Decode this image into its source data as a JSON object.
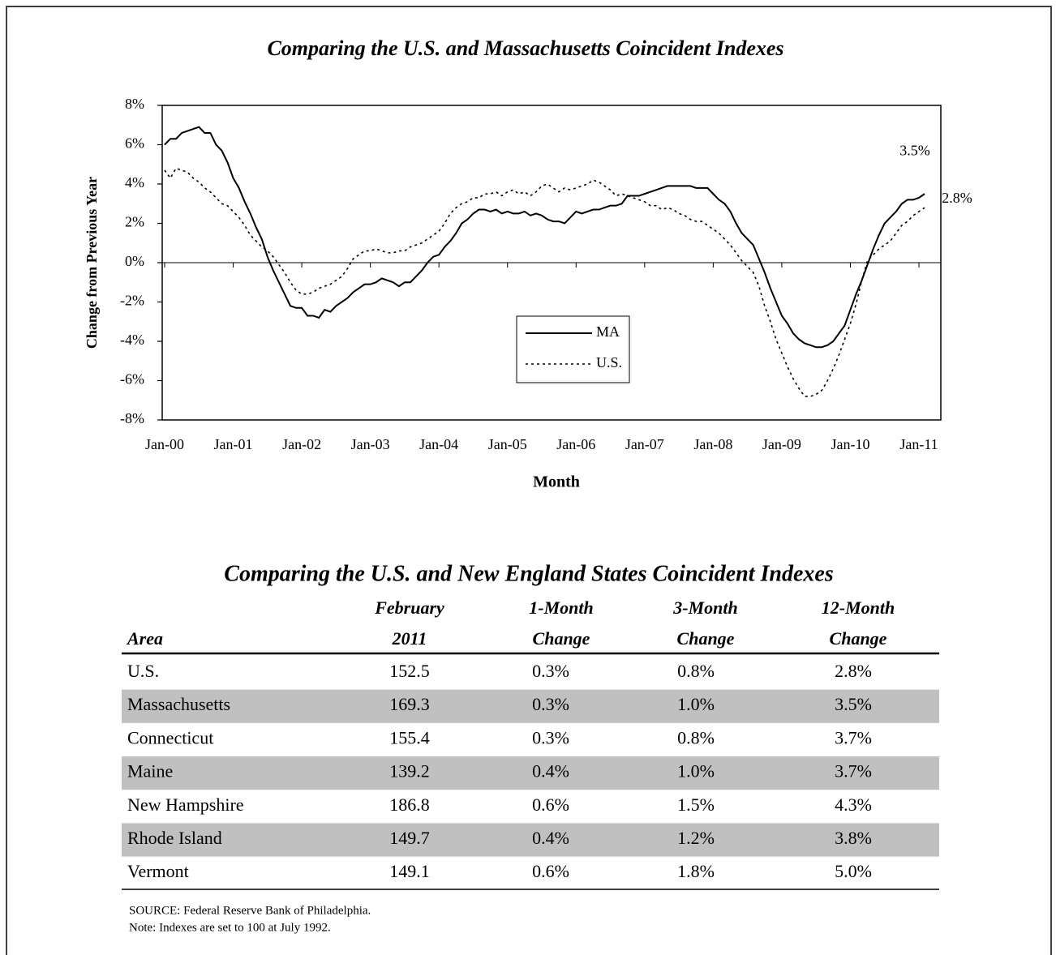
{
  "chart_data": {
    "type": "line",
    "title": "Comparing the U.S. and Massachusetts Coincident Indexes",
    "xlabel": "Month",
    "ylabel": "Change from Previous Year",
    "categories": [
      "Jan-00",
      null,
      null,
      null,
      null,
      null,
      null,
      null,
      null,
      null,
      null,
      null,
      "Jan-01",
      null,
      null,
      null,
      null,
      null,
      null,
      null,
      null,
      null,
      null,
      null,
      "Jan-02",
      null,
      null,
      null,
      null,
      null,
      null,
      null,
      null,
      null,
      null,
      null,
      "Jan-03",
      null,
      null,
      null,
      null,
      null,
      null,
      null,
      null,
      null,
      null,
      null,
      "Jan-04",
      null,
      null,
      null,
      null,
      null,
      null,
      null,
      null,
      null,
      null,
      null,
      "Jan-05",
      null,
      null,
      null,
      null,
      null,
      null,
      null,
      null,
      null,
      null,
      null,
      "Jan-06",
      null,
      null,
      null,
      null,
      null,
      null,
      null,
      null,
      null,
      null,
      null,
      "Jan-07",
      null,
      null,
      null,
      null,
      null,
      null,
      null,
      null,
      null,
      null,
      null,
      "Jan-08",
      null,
      null,
      null,
      null,
      null,
      null,
      null,
      null,
      null,
      null,
      null,
      "Jan-09",
      null,
      null,
      null,
      null,
      null,
      null,
      null,
      null,
      null,
      null,
      null,
      "Jan-10",
      null,
      null,
      null,
      null,
      null,
      null,
      null,
      null,
      null,
      null,
      null,
      "Jan-11",
      null
    ],
    "series": [
      {
        "name": "MA",
        "color": "#000000",
        "dash": "solid",
        "end_label": "3.5%",
        "values": [
          6.0,
          6.3,
          6.3,
          6.6,
          6.7,
          6.8,
          6.9,
          6.6,
          6.6,
          6.0,
          5.7,
          5.1,
          4.3,
          3.8,
          3.1,
          2.5,
          1.8,
          1.2,
          0.3,
          -0.4,
          -1.0,
          -1.6,
          -2.2,
          -2.3,
          -2.3,
          -2.7,
          -2.7,
          -2.8,
          -2.4,
          -2.5,
          -2.2,
          -2.0,
          -1.8,
          -1.5,
          -1.3,
          -1.1,
          -1.1,
          -1.0,
          -0.8,
          -0.9,
          -1.0,
          -1.2,
          -1.0,
          -1.0,
          -0.7,
          -0.4,
          0.0,
          0.3,
          0.4,
          0.8,
          1.1,
          1.5,
          2.0,
          2.2,
          2.5,
          2.7,
          2.7,
          2.6,
          2.7,
          2.5,
          2.6,
          2.5,
          2.5,
          2.6,
          2.4,
          2.5,
          2.4,
          2.2,
          2.1,
          2.1,
          2.0,
          2.3,
          2.6,
          2.5,
          2.6,
          2.7,
          2.7,
          2.8,
          2.9,
          2.9,
          3.0,
          3.4,
          3.4,
          3.4,
          3.5,
          3.6,
          3.7,
          3.8,
          3.9,
          3.9,
          3.9,
          3.9,
          3.9,
          3.8,
          3.8,
          3.8,
          3.5,
          3.2,
          3.0,
          2.6,
          2.0,
          1.5,
          1.2,
          0.9,
          0.2,
          -0.5,
          -1.3,
          -2.0,
          -2.7,
          -3.1,
          -3.6,
          -3.9,
          -4.1,
          -4.2,
          -4.3,
          -4.3,
          -4.2,
          -4.0,
          -3.6,
          -3.2,
          -2.4,
          -1.6,
          -0.9,
          -0.1,
          0.7,
          1.4,
          2.0,
          2.3,
          2.6,
          3.0,
          3.2,
          3.2,
          3.3,
          3.5
        ]
      },
      {
        "name": "U.S.",
        "color": "#000000",
        "dash": "dotted",
        "end_label": "2.8%",
        "values": [
          4.7,
          4.3,
          4.8,
          4.7,
          4.6,
          4.3,
          4.1,
          3.8,
          3.6,
          3.3,
          3.0,
          2.9,
          2.6,
          2.3,
          1.9,
          1.4,
          1.1,
          0.8,
          0.6,
          0.3,
          -0.1,
          -0.5,
          -1.0,
          -1.4,
          -1.6,
          -1.6,
          -1.5,
          -1.3,
          -1.2,
          -1.1,
          -0.9,
          -0.7,
          -0.3,
          0.2,
          0.4,
          0.6,
          0.6,
          0.7,
          0.6,
          0.5,
          0.5,
          0.6,
          0.6,
          0.8,
          0.9,
          1.0,
          1.2,
          1.4,
          1.6,
          2.0,
          2.5,
          2.8,
          3.0,
          3.1,
          3.3,
          3.3,
          3.5,
          3.5,
          3.6,
          3.4,
          3.6,
          3.7,
          3.5,
          3.6,
          3.4,
          3.6,
          3.9,
          4.0,
          3.8,
          3.6,
          3.8,
          3.7,
          3.8,
          3.9,
          4.0,
          4.2,
          4.1,
          3.9,
          3.7,
          3.4,
          3.5,
          3.4,
          3.3,
          3.2,
          3.1,
          2.9,
          2.9,
          2.7,
          2.8,
          2.7,
          2.5,
          2.4,
          2.2,
          2.1,
          2.1,
          1.9,
          1.7,
          1.5,
          1.2,
          0.9,
          0.5,
          0.1,
          -0.2,
          -0.5,
          -1.2,
          -2.2,
          -3.0,
          -3.9,
          -4.6,
          -5.3,
          -5.9,
          -6.4,
          -6.8,
          -6.8,
          -6.7,
          -6.5,
          -6.0,
          -5.4,
          -4.7,
          -3.9,
          -3.1,
          -2.1,
          -0.9,
          0.1,
          0.4,
          0.7,
          0.9,
          1.1,
          1.5,
          1.9,
          2.1,
          2.4,
          2.6,
          2.8
        ]
      }
    ],
    "ylim": [
      -8,
      8
    ],
    "yticks": [
      {
        "value": -8,
        "label": "-8%"
      },
      {
        "value": -6,
        "label": "-6%"
      },
      {
        "value": -4,
        "label": "-4%"
      },
      {
        "value": -2,
        "label": "-2%"
      },
      {
        "value": 0,
        "label": "0%"
      },
      {
        "value": 2,
        "label": "2%"
      },
      {
        "value": 4,
        "label": "4%"
      },
      {
        "value": 6,
        "label": "6%"
      },
      {
        "value": 8,
        "label": "8%"
      }
    ],
    "grid": false,
    "legend": "center"
  },
  "table": {
    "title": "Comparing the U.S. and New England States Coincident Indexes",
    "header": [
      [
        "Area"
      ],
      [
        "February",
        "2011"
      ],
      [
        "1-Month",
        "Change"
      ],
      [
        "3-Month",
        "Change"
      ],
      [
        "12-Month",
        "Change"
      ]
    ],
    "rows": [
      [
        "U.S.",
        "152.5",
        "0.3%",
        "0.8%",
        "2.8%"
      ],
      [
        "Massachusetts",
        "169.3",
        "0.3%",
        "1.0%",
        "3.5%"
      ],
      [
        "Connecticut",
        "155.4",
        "0.3%",
        "0.8%",
        "3.7%"
      ],
      [
        "Maine",
        "139.2",
        "0.4%",
        "1.0%",
        "3.7%"
      ],
      [
        "New Hampshire",
        "186.8",
        "0.6%",
        "1.5%",
        "4.3%"
      ],
      [
        "Rhode Island",
        "149.7",
        "0.4%",
        "1.2%",
        "3.8%"
      ],
      [
        "Vermont",
        "149.1",
        "0.6%",
        "1.8%",
        "5.0%"
      ]
    ],
    "notes": [
      "SOURCE: Federal Reserve Bank of Philadelphia.",
      "Note: Indexes are set to 100 at July 1992."
    ]
  }
}
